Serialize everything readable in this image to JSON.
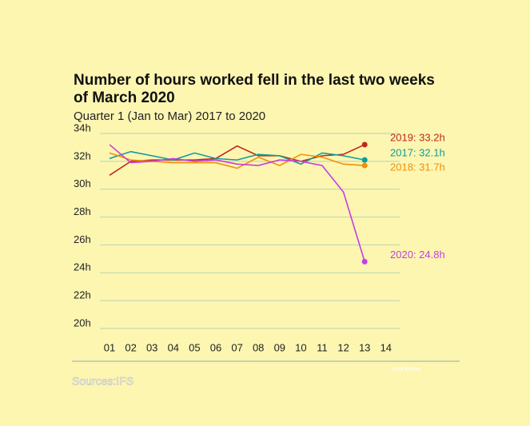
{
  "chart_data": {
    "type": "line",
    "title": "Number of hours worked fell in the last two weeks of March 2020",
    "subtitle": "Quarter 1 (Jan to Mar) 2017 to 2020",
    "source": "Sources:IFS",
    "credit": "Amit Kumar",
    "categories": [
      "01",
      "02",
      "03",
      "04",
      "05",
      "06",
      "07",
      "08",
      "09",
      "10",
      "11",
      "12",
      "13",
      "14"
    ],
    "series": [
      {
        "name": "2019: 33.2h",
        "color": "#c0281e",
        "values": [
          31.0,
          32.0,
          32.1,
          32.1,
          32.1,
          32.2,
          33.1,
          32.4,
          32.4,
          32.0,
          32.4,
          32.5,
          33.2,
          null
        ]
      },
      {
        "name": "2017: 32.1h",
        "color": "#129b9b",
        "values": [
          32.2,
          32.7,
          32.4,
          32.1,
          32.6,
          32.2,
          32.1,
          32.5,
          32.4,
          31.8,
          32.6,
          32.4,
          32.1,
          null
        ]
      },
      {
        "name": "2018: 31.7h",
        "color": "#f0900c",
        "values": [
          32.6,
          32.1,
          32.0,
          31.9,
          31.9,
          31.9,
          31.5,
          32.3,
          31.7,
          32.5,
          32.3,
          31.8,
          31.7,
          null
        ]
      },
      {
        "name": "2020: 24.8h",
        "color": "#c43ee0",
        "values": [
          33.2,
          31.9,
          32.0,
          32.2,
          32.0,
          32.1,
          31.8,
          31.7,
          32.1,
          32.0,
          31.7,
          29.8,
          24.8,
          null
        ]
      }
    ],
    "ylim": [
      20,
      34
    ],
    "yticks": [
      {
        "value": 20,
        "label": "20h"
      },
      {
        "value": 22,
        "label": "22h"
      },
      {
        "value": 24,
        "label": "24h"
      },
      {
        "value": 26,
        "label": "26h"
      },
      {
        "value": 28,
        "label": "28h"
      },
      {
        "value": 30,
        "label": "30h"
      },
      {
        "value": 32,
        "label": "32h"
      },
      {
        "value": 34,
        "label": "34h"
      }
    ],
    "grid": true
  }
}
